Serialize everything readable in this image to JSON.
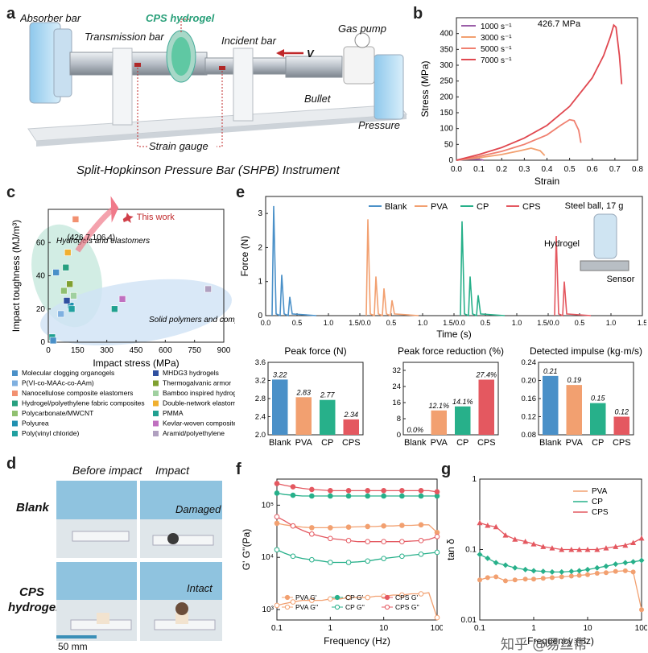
{
  "panel_letters": [
    "a",
    "b",
    "c",
    "d",
    "e",
    "f",
    "g"
  ],
  "panel_a": {
    "labels": {
      "absorber": "Absorber bar",
      "cps": "CPS hydrogel",
      "transmission": "Transmission bar",
      "incident": "Incident bar",
      "gaspump": "Gas pump",
      "v": "V",
      "bullet": "Bullet",
      "pressure": "Pressure",
      "strain": "Strain gauge"
    },
    "caption": "Split-Hopkinson Pressure Bar (SHPB) Instrument"
  },
  "panel_d": {
    "col_before": "Before impact",
    "col_impact": "Impact",
    "row_blank": "Blank",
    "row_cps_1": "CPS",
    "row_cps_2": "hydrogel",
    "damaged": "Damaged",
    "intact": "Intact",
    "scale": "50 mm"
  },
  "panel_e_inset": {
    "steel": "Steel ball, 17 g",
    "hydrogel": "Hydrogel",
    "sensor": "Sensor"
  },
  "watermark": "知乎 @易丝帮",
  "colors": {
    "blank": "#4a90c8",
    "pva": "#f2a070",
    "cp": "#27b08a",
    "cps": "#e45860",
    "purple": "#9b5fa8",
    "pink": "#f08080"
  },
  "chart_data": [
    {
      "id": "b",
      "type": "line",
      "xlabel": "Strain",
      "ylabel": "Stress (MPa)",
      "xlim": [
        0.0,
        0.8
      ],
      "ylim": [
        0,
        450
      ],
      "xticks": [
        "0.0",
        "0.1",
        "0.2",
        "0.3",
        "0.4",
        "0.5",
        "0.6",
        "0.7",
        "0.8"
      ],
      "yticks": [
        "0",
        "50",
        "100",
        "150",
        "200",
        "250",
        "300",
        "350",
        "400"
      ],
      "annotation": "426.7 MPa",
      "legend_position": "top-left",
      "series": [
        {
          "name": "1000 s⁻¹",
          "color": "#9b5fa8",
          "x": [
            0,
            0.03,
            0.06,
            0.09,
            0.11,
            0.12
          ],
          "y": [
            0,
            2,
            3,
            3,
            2,
            0
          ]
        },
        {
          "name": "3000 s⁻¹",
          "color": "#f2a070",
          "x": [
            0,
            0.1,
            0.2,
            0.28,
            0.33,
            0.37,
            0.39
          ],
          "y": [
            0,
            8,
            18,
            30,
            38,
            30,
            15
          ]
        },
        {
          "name": "5000 s⁻¹",
          "color": "#f08070",
          "x": [
            0,
            0.1,
            0.2,
            0.3,
            0.4,
            0.46,
            0.5,
            0.52,
            0.54,
            0.55
          ],
          "y": [
            0,
            12,
            28,
            50,
            80,
            110,
            128,
            125,
            95,
            55
          ]
        },
        {
          "name": "7000 s⁻¹",
          "color": "#e04850",
          "x": [
            0,
            0.1,
            0.2,
            0.3,
            0.4,
            0.5,
            0.6,
            0.65,
            0.68,
            0.695,
            0.705,
            0.72,
            0.73
          ],
          "y": [
            0,
            18,
            40,
            70,
            110,
            170,
            260,
            330,
            390,
            426.7,
            420,
            330,
            240
          ]
        }
      ]
    },
    {
      "id": "c",
      "type": "scatter",
      "xlabel": "Impact stress (MPa)",
      "ylabel": "Impact toughness (MJ/m³)",
      "xlim": [
        0,
        900
      ],
      "ylim": [
        0,
        80
      ],
      "xticks": [
        "0",
        "150",
        "300",
        "450",
        "600",
        "750",
        "900"
      ],
      "yticks": [
        "0",
        "20",
        "40",
        "60"
      ],
      "this_work": {
        "label": "This work",
        "coords": "(426.7,106.4)"
      },
      "region_labels": [
        "Hydrogels and elastomers",
        "Solid polymers and composites"
      ],
      "points": [
        {
          "x": 40,
          "y": 42,
          "label": "Molecular clogging organogels",
          "color": "#4a90c8"
        },
        {
          "x": 65,
          "y": 17,
          "label": "P(VI-co-MAAc-co-AAm)",
          "color": "#7fb0e0"
        },
        {
          "x": 140,
          "y": 74,
          "label": "Nanocellulose composite elastomers",
          "color": "#f29070"
        },
        {
          "x": 90,
          "y": 45,
          "label": "Hydrogel/polyethylene fabric composites",
          "color": "#27a080"
        },
        {
          "x": 80,
          "y": 31,
          "label": "Polycarbonate/MWCNT",
          "color": "#90c070"
        },
        {
          "x": 115,
          "y": 22,
          "label": "Polyurea",
          "color": "#2090b0"
        },
        {
          "x": 120,
          "y": 20,
          "label": "Poly(vinyl chloride)",
          "color": "#20a0a0"
        },
        {
          "x": 95,
          "y": 25,
          "label": "MHDG3 hydrogels",
          "color": "#3050a0"
        },
        {
          "x": 110,
          "y": 35,
          "label": "Thermogalvanic armor",
          "color": "#80a030"
        },
        {
          "x": 130,
          "y": 28,
          "label": "Bamboo inspired hydrogels",
          "color": "#a0d0a0"
        },
        {
          "x": 100,
          "y": 54,
          "label": "Double-network elastomers",
          "color": "#f0b030"
        },
        {
          "x": 340,
          "y": 20,
          "label": "PMMA",
          "color": "#20a090"
        },
        {
          "x": 380,
          "y": 26,
          "label": "Kevlar-woven composites",
          "color": "#c070c0"
        },
        {
          "x": 820,
          "y": 32,
          "label": "Aramid/polyethylene",
          "color": "#b0a0c0"
        },
        {
          "x": 20,
          "y": 3,
          "label": "",
          "color": "#20a090"
        },
        {
          "x": 25,
          "y": 1,
          "label": "",
          "color": "#4a90c8"
        }
      ]
    },
    {
      "id": "e-force",
      "type": "line",
      "xlabel": "Time (s)",
      "ylabel": "Force (N)",
      "ylim": [
        0,
        3.5
      ],
      "yticks": [
        "0",
        "1",
        "2",
        "3"
      ],
      "xticks": [
        "0.0",
        "0.5",
        "1.0",
        "1.5/0.0",
        "0.5",
        "1.0",
        "1.5/0.0",
        "0.5",
        "1.0",
        "1.5/0.0",
        "0.5",
        "1.0",
        "1.5"
      ],
      "series": [
        {
          "name": "Blank",
          "color": "#4a90c8",
          "peaks": [
            3.22,
            1.2,
            0.55
          ]
        },
        {
          "name": "PVA",
          "color": "#f2a070",
          "peaks": [
            2.83,
            1.15,
            0.8,
            0.45
          ]
        },
        {
          "name": "CP",
          "color": "#27b08a",
          "peaks": [
            2.77,
            1.15,
            0.6
          ]
        },
        {
          "name": "CPS",
          "color": "#e45860",
          "peaks": [
            2.34,
            1.0
          ]
        }
      ]
    },
    {
      "id": "e-peak-force",
      "type": "bar",
      "title": "Peak force (N)",
      "categories": [
        "Blank",
        "PVA",
        "CP",
        "CPS"
      ],
      "values": [
        3.22,
        2.83,
        2.77,
        2.34
      ],
      "value_labels": [
        "3.22",
        "2.83",
        "2.77",
        "2.34"
      ],
      "ylim": [
        2.0,
        3.6
      ],
      "yticks": [
        "2.0",
        "2.4",
        "2.8",
        "3.2",
        "3.6"
      ]
    },
    {
      "id": "e-reduction",
      "type": "bar",
      "title": "Peak force reduction (%)",
      "categories": [
        "Blank",
        "PVA",
        "CP",
        "CPS"
      ],
      "values": [
        0.0,
        12.1,
        14.1,
        27.4
      ],
      "value_labels": [
        "0.0%",
        "12.1%",
        "14.1%",
        "27.4%"
      ],
      "ylim": [
        0,
        36
      ],
      "yticks": [
        "0",
        "8",
        "16",
        "24",
        "32"
      ]
    },
    {
      "id": "e-impulse",
      "type": "bar",
      "title": "Detected impulse (kg·m/s)",
      "categories": [
        "Blank",
        "PVA",
        "CP",
        "CPS"
      ],
      "values": [
        0.21,
        0.19,
        0.15,
        0.12
      ],
      "value_labels": [
        "0.21",
        "0.19",
        "0.15",
        "0.12"
      ],
      "ylim": [
        0.08,
        0.24
      ],
      "yticks": [
        "0.08",
        "0.12",
        "0.16",
        "0.20",
        "0.24"
      ]
    },
    {
      "id": "f",
      "type": "line",
      "xlabel": "Frequency (Hz)",
      "ylabel": "G' G''(Pa)",
      "log_x": true,
      "log_y": true,
      "xticks": [
        "0.1",
        "1",
        "10",
        "100"
      ],
      "yticks": [
        "10³",
        "10⁴",
        "10⁵"
      ],
      "x": [
        0.1,
        0.14,
        0.2,
        0.3,
        0.45,
        0.7,
        1,
        1.5,
        2.2,
        3.3,
        5,
        7,
        10,
        15,
        22,
        33,
        50,
        70,
        100
      ],
      "series": [
        {
          "name": "PVA G'",
          "color": "#f2a070",
          "filled": true,
          "y": [
            45000,
            42000,
            40000,
            38000,
            37000,
            37000,
            37000,
            37500,
            38000,
            38500,
            39000,
            39000,
            40000,
            40000,
            41000,
            41000,
            42000,
            42000,
            30000
          ]
        },
        {
          "name": "PVA G''",
          "color": "#f2a070",
          "filled": false,
          "y": [
            1200,
            1300,
            1400,
            1500,
            1500,
            1500,
            1600,
            1600,
            1700,
            1700,
            1700,
            1800,
            1800,
            1900,
            1900,
            2000,
            2000,
            2100,
            700
          ]
        },
        {
          "name": "CP G'",
          "color": "#27b08a",
          "filled": true,
          "y": [
            170000,
            160000,
            155000,
            150000,
            150000,
            150000,
            150000,
            150000,
            150000,
            150000,
            150000,
            150000,
            150000,
            150000,
            150000,
            150000,
            150000,
            150000,
            150000
          ]
        },
        {
          "name": "CP G''",
          "color": "#27b08a",
          "filled": false,
          "y": [
            14000,
            12000,
            10500,
            9500,
            9000,
            8500,
            8000,
            8000,
            8000,
            8200,
            8500,
            9000,
            9500,
            10000,
            10500,
            11000,
            11500,
            12000,
            12500
          ]
        },
        {
          "name": "CPS G'",
          "color": "#e45860",
          "filled": true,
          "y": [
            260000,
            240000,
            225000,
            210000,
            200000,
            195000,
            190000,
            190000,
            190000,
            190000,
            190000,
            190000,
            190000,
            190000,
            190000,
            190000,
            190000,
            190000,
            180000
          ]
        },
        {
          "name": "CPS G''",
          "color": "#e45860",
          "filled": false,
          "y": [
            60000,
            50000,
            40000,
            33000,
            28000,
            25000,
            23000,
            22000,
            21000,
            20000,
            20000,
            20000,
            20000,
            20000,
            20000,
            20500,
            21000,
            22000,
            25000
          ]
        }
      ],
      "legend_position": "bottom-left"
    },
    {
      "id": "g",
      "type": "line",
      "xlabel": "Frequency (Hz)",
      "ylabel": "tan δ",
      "log_x": true,
      "log_y": true,
      "xticks": [
        "0.1",
        "1",
        "10",
        "100"
      ],
      "yticks": [
        "0.01",
        "0.1",
        "1"
      ],
      "x": [
        0.1,
        0.14,
        0.2,
        0.3,
        0.45,
        0.7,
        1,
        1.5,
        2.2,
        3.3,
        5,
        7,
        10,
        15,
        22,
        33,
        50,
        70,
        100
      ],
      "series": [
        {
          "name": "PVA",
          "color": "#f2a070",
          "y": [
            0.037,
            0.04,
            0.041,
            0.036,
            0.037,
            0.038,
            0.038,
            0.039,
            0.04,
            0.041,
            0.042,
            0.043,
            0.044,
            0.046,
            0.047,
            0.049,
            0.05,
            0.048,
            0.014
          ]
        },
        {
          "name": "CP",
          "color": "#27b08a",
          "y": [
            0.085,
            0.075,
            0.065,
            0.06,
            0.055,
            0.052,
            0.05,
            0.049,
            0.048,
            0.048,
            0.049,
            0.05,
            0.052,
            0.055,
            0.058,
            0.062,
            0.065,
            0.067,
            0.07
          ]
        },
        {
          "name": "CPS",
          "color": "#e45860",
          "y": [
            0.24,
            0.22,
            0.21,
            0.16,
            0.14,
            0.13,
            0.12,
            0.11,
            0.105,
            0.1,
            0.1,
            0.1,
            0.1,
            0.1,
            0.105,
            0.11,
            0.115,
            0.125,
            0.145
          ]
        }
      ],
      "legend_position": "top-right"
    }
  ]
}
